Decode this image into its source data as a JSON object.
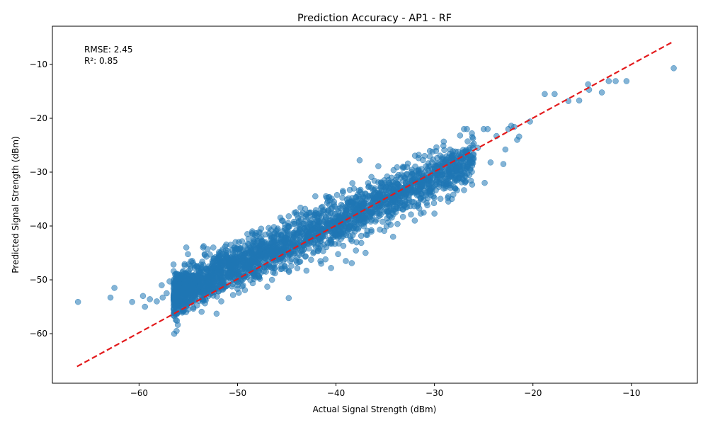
{
  "chart_data": {
    "type": "scatter",
    "title": "Prediction Accuracy - AP1 - RF",
    "xlabel": "Actual Signal Strength (dBm)",
    "ylabel": "Predicted Signal Strength (dBm)",
    "xlim": [
      -68.8,
      -3.3
    ],
    "ylim": [
      -69.2,
      -2.9
    ],
    "x_ticks": [
      -60,
      -50,
      -40,
      -30,
      -20,
      -10
    ],
    "y_ticks": [
      -60,
      -50,
      -40,
      -30,
      -20,
      -10
    ],
    "x_tick_labels": [
      "−60",
      "−50",
      "−40",
      "−30",
      "−20",
      "−10"
    ],
    "y_tick_labels": [
      "−60",
      "−50",
      "−40",
      "−30",
      "−20",
      "−10"
    ],
    "grid": false,
    "annotations": {
      "rmse": "RMSE: 2.45",
      "r2": "R²: 0.85"
    },
    "series": [
      {
        "kind": "points",
        "color": "#1f77b4",
        "opacity": 0.55,
        "points": [
          [
            -66.2,
            -54.1
          ],
          [
            -62.9,
            -53.3
          ],
          [
            -62.5,
            -51.5
          ],
          [
            -60.7,
            -54.1
          ],
          [
            -59.6,
            -53.0
          ],
          [
            -59.4,
            -55.0
          ],
          [
            -58.9,
            -53.6
          ],
          [
            -58.2,
            -54.0
          ],
          [
            -57.6,
            -53.3
          ],
          [
            -57.7,
            -51.0
          ],
          [
            -57.2,
            -52.5
          ],
          [
            -56.9,
            -50.3
          ],
          [
            -56.2,
            -53.8
          ],
          [
            -55.6,
            -48.6
          ],
          [
            -55.2,
            -44.0
          ],
          [
            -55.0,
            -55.5
          ],
          [
            -54.6,
            -46.5
          ],
          [
            -53.5,
            -44.0
          ],
          [
            -52.8,
            -45.3
          ],
          [
            -51.8,
            -45.5
          ],
          [
            -50.7,
            -43.5
          ],
          [
            -50.2,
            -43.0
          ],
          [
            -49.0,
            -41.5
          ],
          [
            -48.5,
            -41.0
          ],
          [
            -47.6,
            -40.5
          ],
          [
            -46.3,
            -40.2
          ],
          [
            -45.5,
            -39.0
          ],
          [
            -44.8,
            -38.2
          ],
          [
            -44.0,
            -37.9
          ],
          [
            -43.6,
            -36.6
          ],
          [
            -42.7,
            -37.5
          ],
          [
            -41.5,
            -36.6
          ],
          [
            -40.2,
            -35.5
          ],
          [
            -39.3,
            -33.5
          ],
          [
            -38.6,
            -33.3
          ],
          [
            -37.6,
            -27.8
          ],
          [
            -36.4,
            -30.9
          ],
          [
            -35.7,
            -28.9
          ],
          [
            -34.8,
            -30.8
          ],
          [
            -33.8,
            -29.1
          ],
          [
            -33.2,
            -29.0
          ],
          [
            -32.7,
            -28.4
          ],
          [
            -31.6,
            -26.8
          ],
          [
            -31.0,
            -27.0
          ],
          [
            -30.2,
            -26.2
          ],
          [
            -29.8,
            -25.4
          ],
          [
            -29.0,
            -25.9
          ],
          [
            -28.6,
            -28.2
          ],
          [
            -27.9,
            -28.7
          ],
          [
            -27.4,
            -23.2
          ],
          [
            -27.0,
            -22.0
          ],
          [
            -26.7,
            -22.0
          ],
          [
            -26.2,
            -22.8
          ],
          [
            -26.0,
            -24.7
          ],
          [
            -25.6,
            -25.5
          ],
          [
            -25.0,
            -22.0
          ],
          [
            -24.6,
            -22.0
          ],
          [
            -24.3,
            -28.2
          ],
          [
            -23.7,
            -23.3
          ],
          [
            -23.0,
            -28.5
          ],
          [
            -22.8,
            -25.8
          ],
          [
            -22.5,
            -22.0
          ],
          [
            -22.2,
            -21.4
          ],
          [
            -21.9,
            -21.6
          ],
          [
            -21.4,
            -23.4
          ],
          [
            -21.6,
            -24.0
          ],
          [
            -20.3,
            -20.6
          ],
          [
            -18.8,
            -15.5
          ],
          [
            -17.8,
            -15.5
          ],
          [
            -16.4,
            -16.8
          ],
          [
            -15.3,
            -16.7
          ],
          [
            -14.4,
            -13.7
          ],
          [
            -14.3,
            -14.7
          ],
          [
            -13.0,
            -15.2
          ],
          [
            -12.3,
            -13.1
          ],
          [
            -11.6,
            -13.1
          ],
          [
            -10.5,
            -13.1
          ],
          [
            -5.7,
            -10.7
          ],
          [
            -44.8,
            -53.4
          ],
          [
            -37.0,
            -45.0
          ],
          [
            -38.4,
            -46.9
          ],
          [
            -40.5,
            -47.8
          ],
          [
            -34.2,
            -42.0
          ],
          [
            -32.0,
            -39.0
          ],
          [
            -30.0,
            -37.7
          ],
          [
            -28.6,
            -34.5
          ],
          [
            -24.9,
            -32.0
          ],
          [
            -26.3,
            -31.6
          ],
          [
            -30.8,
            -35.7
          ],
          [
            -33.2,
            -38.3
          ],
          [
            -35.1,
            -40.9
          ],
          [
            -39.0,
            -46.5
          ],
          [
            -43.0,
            -48.3
          ],
          [
            -46.5,
            -50.0
          ],
          [
            -41.5,
            -47.0
          ]
        ]
      }
    ],
    "dense_cloud": {
      "x_range": [
        -56.5,
        -26.0
      ],
      "center_slope": 0.82,
      "center_intercept": -6.5,
      "spread": 2.45
    },
    "reference_line": {
      "x": [
        -66.3,
        -5.7
      ],
      "y": [
        -66.1,
        -5.7
      ],
      "color": "#e31a1c",
      "style": "dashed"
    }
  }
}
